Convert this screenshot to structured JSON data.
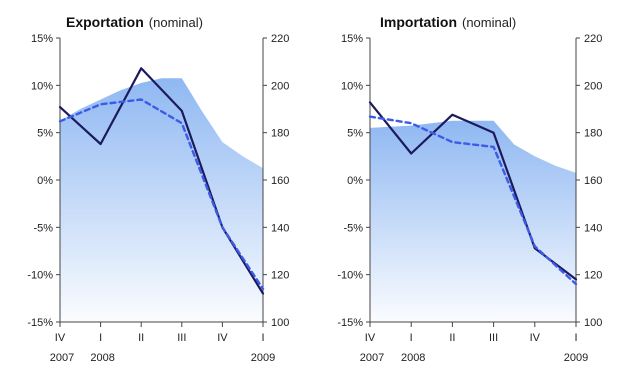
{
  "chart_data": [
    {
      "type": "line",
      "title": "Exportation",
      "subtitle": "(nominal)",
      "x": [
        "IV 2007",
        "I 2008",
        "II 2008",
        "III 2008",
        "IV 2008",
        "I 2009"
      ],
      "xtick_labels": [
        {
          "top": "IV",
          "bottom": "2007"
        },
        {
          "top": "I",
          "bottom": "2008"
        },
        {
          "top": "II",
          "bottom": ""
        },
        {
          "top": "III",
          "bottom": ""
        },
        {
          "top": "IV",
          "bottom": ""
        },
        {
          "top": "I",
          "bottom": "2009"
        }
      ],
      "ylim_left": [
        -15,
        15
      ],
      "yticks_left": [
        "15%",
        "10%",
        "5%",
        "0%",
        "-5%",
        "-10%",
        "-15%"
      ],
      "ylim_right": [
        100,
        220
      ],
      "yticks_right": [
        "220",
        "200",
        "180",
        "160",
        "140",
        "120",
        "100"
      ],
      "grid": false,
      "series": [
        {
          "style": "area",
          "axis": "right",
          "color": "#8fb8f2",
          "points": [
            [
              0,
              185
            ],
            [
              0.5,
              190
            ],
            [
              1,
              194
            ],
            [
              1.5,
              198
            ],
            [
              2,
              201
            ],
            [
              2.5,
              203
            ],
            [
              3,
              203
            ],
            [
              3.5,
              189
            ],
            [
              4,
              176
            ],
            [
              4.5,
              170
            ],
            [
              5,
              165
            ]
          ]
        },
        {
          "style": "solid",
          "axis": "left",
          "color": "#1c1a5e",
          "values": [
            7.7,
            3.8,
            11.8,
            7.3,
            -5,
            -12
          ]
        },
        {
          "style": "dashed",
          "axis": "left",
          "color": "#3c5ce8",
          "values": [
            6.2,
            8,
            8.5,
            6,
            -5,
            -11.5
          ]
        }
      ]
    },
    {
      "type": "line",
      "title": "Importation",
      "subtitle": "(nominal)",
      "x": [
        "IV 2007",
        "I 2008",
        "II 2008",
        "III 2008",
        "IV 2008",
        "I 2009"
      ],
      "xtick_labels": [
        {
          "top": "IV",
          "bottom": "2007"
        },
        {
          "top": "I",
          "bottom": "2008"
        },
        {
          "top": "II",
          "bottom": ""
        },
        {
          "top": "III",
          "bottom": ""
        },
        {
          "top": "IV",
          "bottom": ""
        },
        {
          "top": "I",
          "bottom": "2009"
        }
      ],
      "ylim_left": [
        -15,
        15
      ],
      "yticks_left": [
        "15%",
        "10%",
        "5%",
        "0%",
        "-5%",
        "-10%",
        "-15%"
      ],
      "ylim_right": [
        100,
        220
      ],
      "yticks_right": [
        "220",
        "200",
        "180",
        "160",
        "140",
        "120",
        "100"
      ],
      "grid": false,
      "series": [
        {
          "style": "area",
          "axis": "right",
          "color": "#8fb8f2",
          "points": [
            [
              0,
              182
            ],
            [
              1,
              183
            ],
            [
              2,
              185
            ],
            [
              3,
              185
            ],
            [
              3.5,
              175
            ],
            [
              4,
              170
            ],
            [
              4.5,
              166
            ],
            [
              5,
              163
            ]
          ]
        },
        {
          "style": "solid",
          "axis": "left",
          "color": "#1c1a5e",
          "values": [
            8.2,
            2.8,
            6.9,
            5,
            -7.2,
            -10.5
          ]
        },
        {
          "style": "dashed",
          "axis": "left",
          "color": "#3c5ce8",
          "values": [
            6.7,
            6,
            4,
            3.5,
            -7,
            -11
          ]
        }
      ]
    }
  ]
}
